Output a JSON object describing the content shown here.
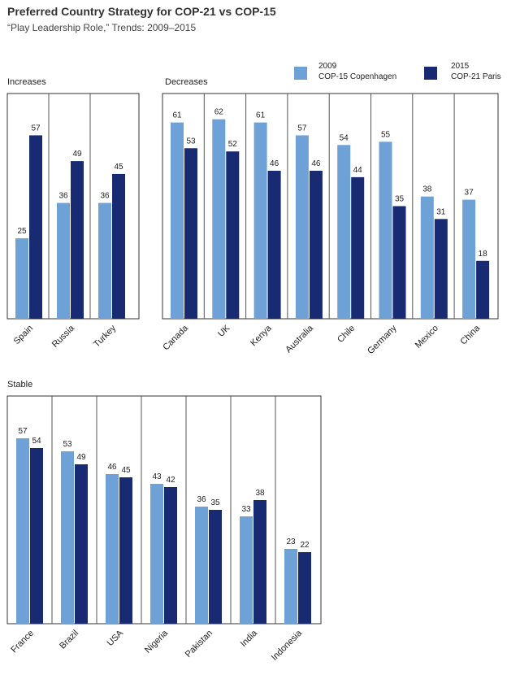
{
  "header": {
    "title": "Preferred Country Strategy for COP-21 vs COP-15",
    "subtitle": "“Play Leadership Role,” Trends: 2009–2015"
  },
  "legend": {
    "s2009_line1": "2009",
    "s2009_line2": "COP-15 Copenhagen",
    "s2015_line1": "2015",
    "s2015_line2": "COP-21 Paris"
  },
  "colors": {
    "s2009": "#6ea1d6",
    "s2015": "#172a72",
    "frame": "#333333",
    "divider": "#555555"
  },
  "chart_data": [
    {
      "type": "bar",
      "title": "Increases",
      "categories": [
        "Spain",
        "Russia",
        "Turkey"
      ],
      "series": [
        {
          "name": "2009 COP-15 Copenhagen",
          "values": [
            25,
            36,
            36
          ]
        },
        {
          "name": "2015 COP-21 Paris",
          "values": [
            57,
            49,
            45
          ]
        }
      ],
      "ylim": [
        0,
        70
      ],
      "legend_position": "top-right"
    },
    {
      "type": "bar",
      "title": "Decreases",
      "categories": [
        "Canada",
        "UK",
        "Kenya",
        "Australia",
        "Chile",
        "Germany",
        "Mexico",
        "China"
      ],
      "series": [
        {
          "name": "2009 COP-15 Copenhagen",
          "values": [
            61,
            62,
            61,
            57,
            54,
            55,
            38,
            37
          ]
        },
        {
          "name": "2015 COP-21 Paris",
          "values": [
            53,
            52,
            46,
            46,
            44,
            35,
            31,
            18
          ]
        }
      ],
      "ylim": [
        0,
        70
      ]
    },
    {
      "type": "bar",
      "title": "Stable",
      "categories": [
        "France",
        "Brazil",
        "USA",
        "Nigeria",
        "Pakistan",
        "India",
        "Indonesia"
      ],
      "series": [
        {
          "name": "2009 COP-15 Copenhagen",
          "values": [
            57,
            53,
            46,
            43,
            36,
            33,
            23
          ]
        },
        {
          "name": "2015 COP-21 Paris",
          "values": [
            54,
            49,
            45,
            42,
            35,
            38,
            22
          ]
        }
      ],
      "ylim": [
        0,
        70
      ]
    }
  ]
}
